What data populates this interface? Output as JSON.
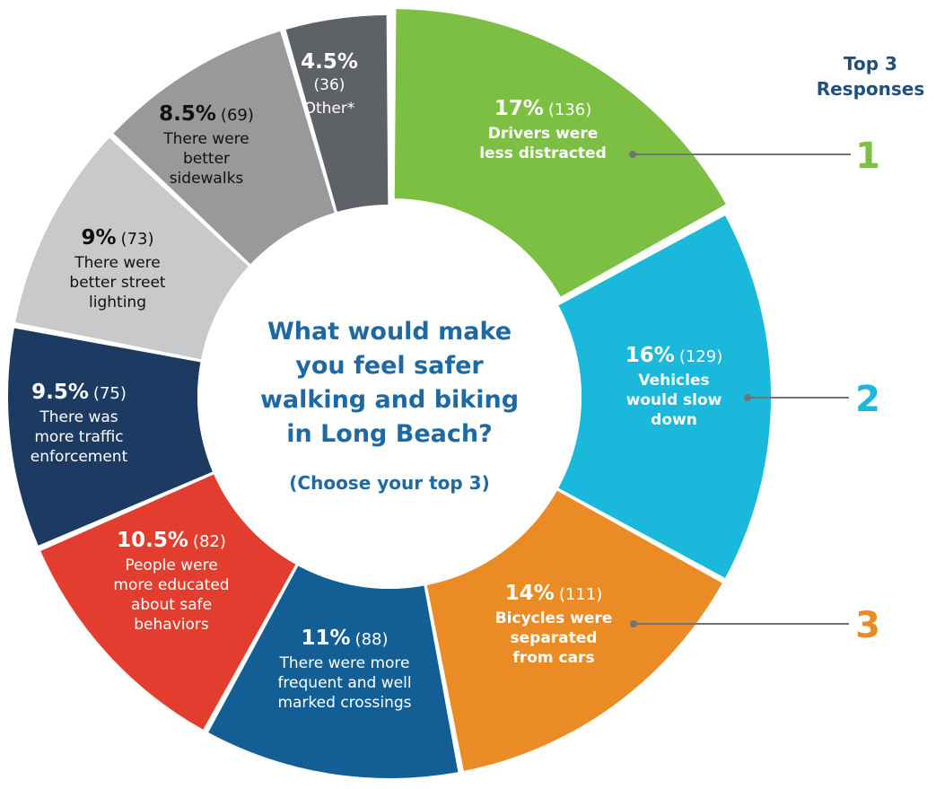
{
  "chart_data": {
    "type": "pie",
    "subtype": "donut",
    "center_question": [
      "What would make",
      "you feel safer",
      "walking and biking",
      "in Long Beach?"
    ],
    "center_note": "(Choose your top 3)",
    "top_heading": [
      "Top 3",
      "Responses"
    ],
    "slices": [
      {
        "percent_label": "17%",
        "count_label": "(136)",
        "value": 17,
        "count": 136,
        "label_lines": [
          "Drivers were",
          "less distracted"
        ],
        "color": "#7dbf42",
        "text_color": "#ffffff",
        "label_bold": true,
        "rank": "1"
      },
      {
        "percent_label": "16%",
        "count_label": "(129)",
        "value": 16,
        "count": 129,
        "label_lines": [
          "Vehicles",
          "would slow",
          "down"
        ],
        "color": "#1ab8db",
        "text_color": "#ffffff",
        "label_bold": true,
        "rank": "2"
      },
      {
        "percent_label": "14%",
        "count_label": "(111)",
        "value": 14,
        "count": 111,
        "label_lines": [
          "Bicycles were",
          "separated",
          "from cars"
        ],
        "color": "#ea8b26",
        "text_color": "#ffffff",
        "label_bold": true,
        "rank": "3"
      },
      {
        "percent_label": "11%",
        "count_label": "(88)",
        "value": 11,
        "count": 88,
        "label_lines": [
          "There were more",
          "frequent and well",
          "marked crossings"
        ],
        "color": "#135f95",
        "text_color": "#ffffff",
        "label_bold": false,
        "rank": ""
      },
      {
        "percent_label": "10.5%",
        "count_label": "(82)",
        "value": 10.5,
        "count": 82,
        "label_lines": [
          "People were",
          "more educated",
          "about safe",
          "behaviors"
        ],
        "color": "#e23d2e",
        "text_color": "#ffffff",
        "label_bold": false,
        "rank": ""
      },
      {
        "percent_label": "9.5%",
        "count_label": "(75)",
        "value": 9.5,
        "count": 75,
        "label_lines": [
          "There was",
          "more traffic",
          "enforcement"
        ],
        "color": "#1d3a62",
        "text_color": "#ffffff",
        "label_bold": false,
        "rank": ""
      },
      {
        "percent_label": "9%",
        "count_label": "(73)",
        "value": 9,
        "count": 73,
        "label_lines": [
          "There were",
          "better street",
          "lighting"
        ],
        "color": "#c8c9cb",
        "text_color": "#111111",
        "label_bold": false,
        "rank": ""
      },
      {
        "percent_label": "8.5%",
        "count_label": "(69)",
        "value": 8.5,
        "count": 69,
        "label_lines": [
          "There were",
          "better",
          "sidewalks"
        ],
        "color": "#98999b",
        "text_color": "#111111",
        "label_bold": false,
        "rank": ""
      },
      {
        "percent_label": "4.5%",
        "count_label": "(36)",
        "value": 4.5,
        "count": 36,
        "label_lines": [
          "Other*"
        ],
        "color": "#5e6166",
        "text_color": "#ffffff",
        "label_bold": false,
        "rank": ""
      }
    ],
    "rank_colors": {
      "1": "#7dbf42",
      "2": "#1ab8db",
      "3": "#ea8b26"
    }
  }
}
